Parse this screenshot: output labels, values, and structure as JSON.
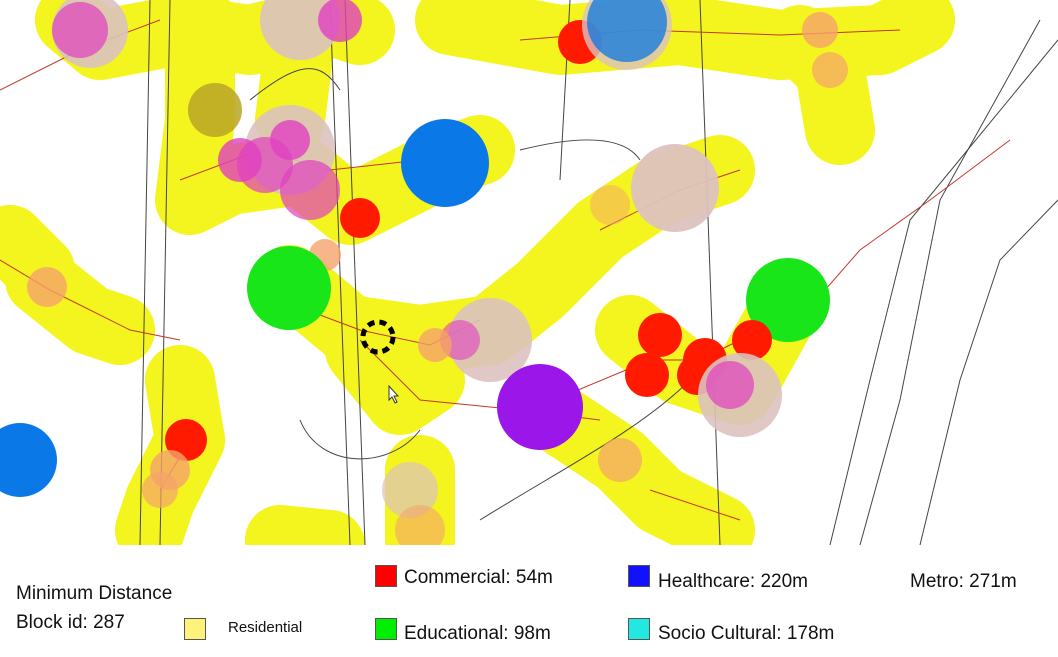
{
  "title": "Minimum Distance",
  "block": {
    "label": "Block id: 287"
  },
  "legend": {
    "residential": {
      "label": "Residential",
      "color": "#fff27a"
    },
    "commercial": {
      "label": "Commercial: 54m",
      "color": "#ff0000"
    },
    "educational": {
      "label": "Educational: 98m",
      "color": "#00ee00"
    },
    "healthcare": {
      "label": "Healthcare: 220m",
      "color": "#1111ff"
    },
    "socio_cultural": {
      "label": "Socio Cultural: 178m",
      "color": "#22e8e0"
    },
    "metro": {
      "label": "Metro: 271m"
    }
  },
  "map_colors": {
    "buffer": "#f4f41e",
    "commercial": "#ff1a00",
    "educational": "#19e619",
    "healthcare": "#0a78e6",
    "purple": "#9b16e8",
    "pink": "#e040c0",
    "tan": "#dcc2bf",
    "salmon": "#f5a36b",
    "olive": "#b8a426",
    "network": "#c0392b",
    "boundary": "#444444"
  },
  "icons": {
    "selected_block": "selected-block-marker-icon",
    "cursor": "mouse-cursor-icon"
  }
}
